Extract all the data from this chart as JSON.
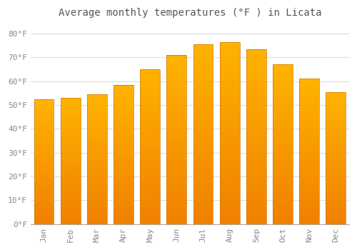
{
  "title": "Average monthly temperatures (°F ) in Licata",
  "months": [
    "Jan",
    "Feb",
    "Mar",
    "Apr",
    "May",
    "Jun",
    "Jul",
    "Aug",
    "Sep",
    "Oct",
    "Nov",
    "Dec"
  ],
  "values": [
    52.5,
    53.0,
    54.5,
    58.5,
    65.0,
    71.0,
    75.5,
    76.5,
    73.5,
    67.0,
    61.0,
    55.5
  ],
  "bar_color_top": "#FFB300",
  "bar_color_bottom": "#F08000",
  "bar_edge_color": "#CC7700",
  "background_color": "#FFFFFF",
  "plot_bg_color": "#FFFFFF",
  "grid_color": "#DDDDDD",
  "text_color": "#888888",
  "title_color": "#555555",
  "ylim": [
    0,
    85
  ],
  "yticks": [
    0,
    10,
    20,
    30,
    40,
    50,
    60,
    70,
    80
  ],
  "ytick_labels": [
    "0°F",
    "10°F",
    "20°F",
    "30°F",
    "40°F",
    "50°F",
    "60°F",
    "70°F",
    "80°F"
  ],
  "title_fontsize": 10,
  "tick_fontsize": 8
}
